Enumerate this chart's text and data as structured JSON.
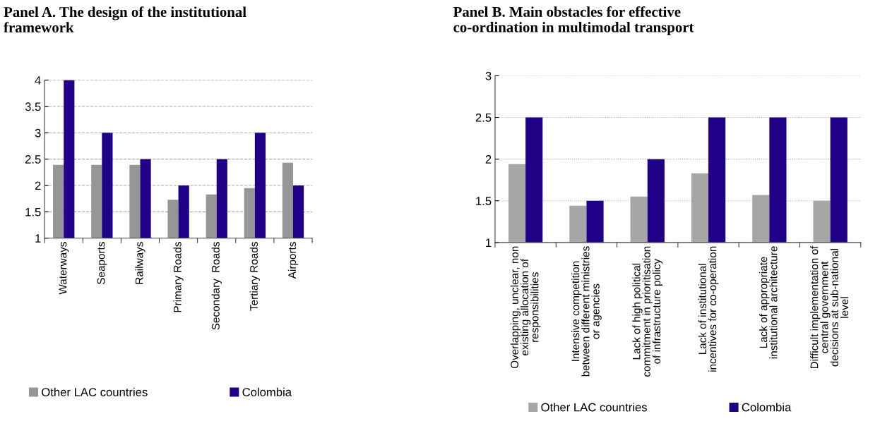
{
  "chart_data": [
    {
      "type": "bar",
      "title": "Panel A. The design of the institutional\nframework",
      "categories": [
        "Waterways",
        "Seaports",
        "Railways",
        "Primary Roads",
        "Secondary  Roads",
        "Tertiary Roads",
        "Airports"
      ],
      "series": [
        {
          "name": "Other LAC countries",
          "color": "#969696",
          "values": [
            2.39,
            2.39,
            2.39,
            1.73,
            1.83,
            1.95,
            2.43
          ]
        },
        {
          "name": "Colombia",
          "color": "#1f0087",
          "values": [
            4,
            3,
            2.5,
            2,
            2.5,
            3,
            2
          ]
        }
      ],
      "ylim": [
        1,
        4
      ],
      "yticks": [
        1,
        1.5,
        2,
        2.5,
        3,
        3.5,
        4
      ],
      "grid": "y",
      "line_style": "dashed",
      "legend": "bottom"
    },
    {
      "type": "bar",
      "title": "Panel B. Main obstacles for effective\nco-ordination in multimodal transport",
      "categories": [
        "Overlapping, unclear, non\nexisting allocation of\nresponsibilities",
        "Intensive competition\nbetween different ministries\nor agencies",
        "Lack of high political\ncommitment in prioritisation\nof infrastructure policy",
        "Lack of institutional\nincentives for co-operation",
        "Lack of appropriate\ninstitutional architecture",
        "Difficult implementation of\ncentral government\ndecisions at sub-national\nlevel"
      ],
      "series": [
        {
          "name": "Other LAC countries",
          "color": "#a6a6a6",
          "values": [
            1.94,
            1.44,
            1.55,
            1.83,
            1.57,
            1.5
          ]
        },
        {
          "name": "Colombia",
          "color": "#1f0087",
          "values": [
            2.5,
            1.5,
            2,
            2.5,
            2.5,
            2.5
          ]
        }
      ],
      "ylim": [
        1,
        3
      ],
      "yticks": [
        1,
        1.5,
        2,
        2.5,
        3
      ],
      "grid": "y",
      "line_style": "dotted",
      "legend": "bottom"
    }
  ]
}
